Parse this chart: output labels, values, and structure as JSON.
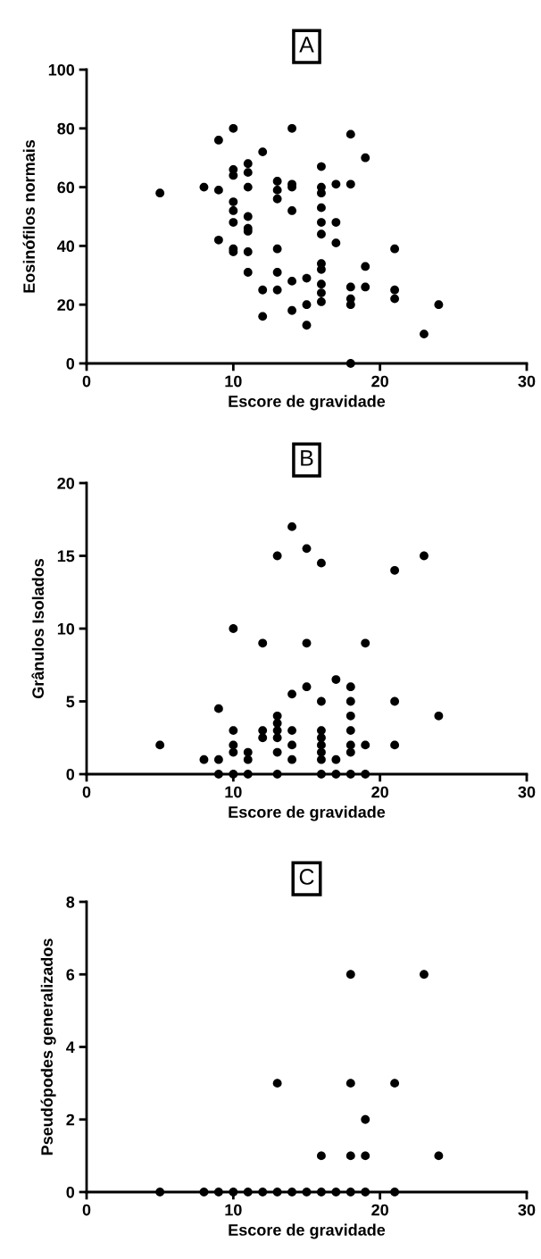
{
  "chart_data": [
    {
      "type": "scatter",
      "title": "A",
      "xlabel": "Escore de gravidade",
      "ylabel": "Eosinófilos normais",
      "xlim": [
        0,
        30
      ],
      "xticks": [
        0,
        10,
        20,
        30
      ],
      "ylim": [
        0,
        100
      ],
      "yticks": [
        0,
        20,
        40,
        60,
        80,
        100
      ],
      "marker": "circle",
      "series": [
        {
          "color": "#000000",
          "x": [
            5,
            8,
            9,
            9,
            9,
            10,
            10,
            10,
            10,
            10,
            10,
            10,
            10,
            11,
            11,
            11,
            11,
            11,
            11,
            11,
            11,
            12,
            12,
            12,
            13,
            13,
            13,
            13,
            13,
            13,
            14,
            14,
            14,
            14,
            14,
            14,
            15,
            15,
            15,
            16,
            16,
            16,
            16,
            16,
            16,
            16,
            16,
            16,
            16,
            16,
            17,
            17,
            17,
            18,
            18,
            18,
            18,
            18,
            18,
            19,
            19,
            19,
            21,
            21,
            21,
            23,
            24
          ],
          "values": [
            58,
            60,
            76,
            59,
            42,
            80,
            66,
            64,
            55,
            52,
            48,
            39,
            38,
            68,
            65,
            60,
            50,
            46,
            45,
            38,
            31,
            72,
            25,
            16,
            62,
            59,
            56,
            39,
            31,
            25,
            80,
            61,
            60,
            52,
            28,
            18,
            29,
            20,
            13,
            67,
            60,
            58,
            53,
            48,
            44,
            34,
            32,
            27,
            24,
            21,
            61,
            48,
            41,
            78,
            61,
            26,
            22,
            20,
            0,
            70,
            33,
            26,
            39,
            25,
            22,
            10,
            20
          ]
        }
      ]
    },
    {
      "type": "scatter",
      "title": "B",
      "xlabel": "Escore de gravidade",
      "ylabel": "Grânulos Isolados",
      "xlim": [
        0,
        30
      ],
      "xticks": [
        0,
        10,
        20,
        30
      ],
      "ylim": [
        0,
        20
      ],
      "yticks": [
        0,
        5,
        10,
        15,
        20
      ],
      "marker": "circle",
      "series": [
        {
          "color": "#000000",
          "x": [
            5,
            8,
            9,
            9,
            9,
            10,
            10,
            10,
            10,
            10,
            11,
            11,
            11,
            12,
            12,
            12,
            13,
            13,
            13,
            13,
            13,
            13,
            13,
            14,
            14,
            14,
            14,
            14,
            15,
            15,
            15,
            16,
            16,
            16,
            16,
            16,
            16,
            16,
            16,
            17,
            17,
            17,
            18,
            18,
            18,
            18,
            18,
            18,
            18,
            19,
            19,
            19,
            21,
            21,
            21,
            23,
            24
          ],
          "values": [
            2,
            1,
            4.5,
            1,
            0,
            10,
            3,
            2,
            1.5,
            0,
            1.5,
            1,
            0,
            9,
            3,
            2.5,
            15,
            4,
            3.5,
            3,
            2.5,
            1.5,
            0,
            17,
            5.5,
            3,
            2,
            1,
            15.5,
            9,
            6,
            14.5,
            5,
            3,
            2.5,
            2,
            1.5,
            1,
            0,
            6.5,
            1,
            0,
            6,
            5,
            4,
            3,
            2,
            1.5,
            0,
            9,
            2,
            0,
            14,
            5,
            2,
            15,
            4
          ]
        }
      ]
    },
    {
      "type": "scatter",
      "title": "C",
      "xlabel": "Escore de gravidade",
      "ylabel": "Pseudópodes generalizados",
      "xlim": [
        0,
        30
      ],
      "xticks": [
        0,
        10,
        20,
        30
      ],
      "ylim": [
        0,
        8
      ],
      "yticks": [
        0,
        2,
        4,
        6,
        8
      ],
      "marker": "circle",
      "series": [
        {
          "color": "#000000",
          "x": [
            18,
            23,
            13,
            18,
            21,
            19,
            16,
            18,
            19,
            24,
            5,
            8,
            9,
            10,
            11,
            12,
            13,
            14,
            15,
            16,
            17,
            18,
            19,
            21
          ],
          "values": [
            6,
            6,
            3,
            3,
            3,
            2,
            1,
            1,
            1,
            1,
            0,
            0,
            0,
            0,
            0,
            0,
            0,
            0,
            0,
            0,
            0,
            0,
            0,
            0
          ]
        }
      ]
    }
  ]
}
